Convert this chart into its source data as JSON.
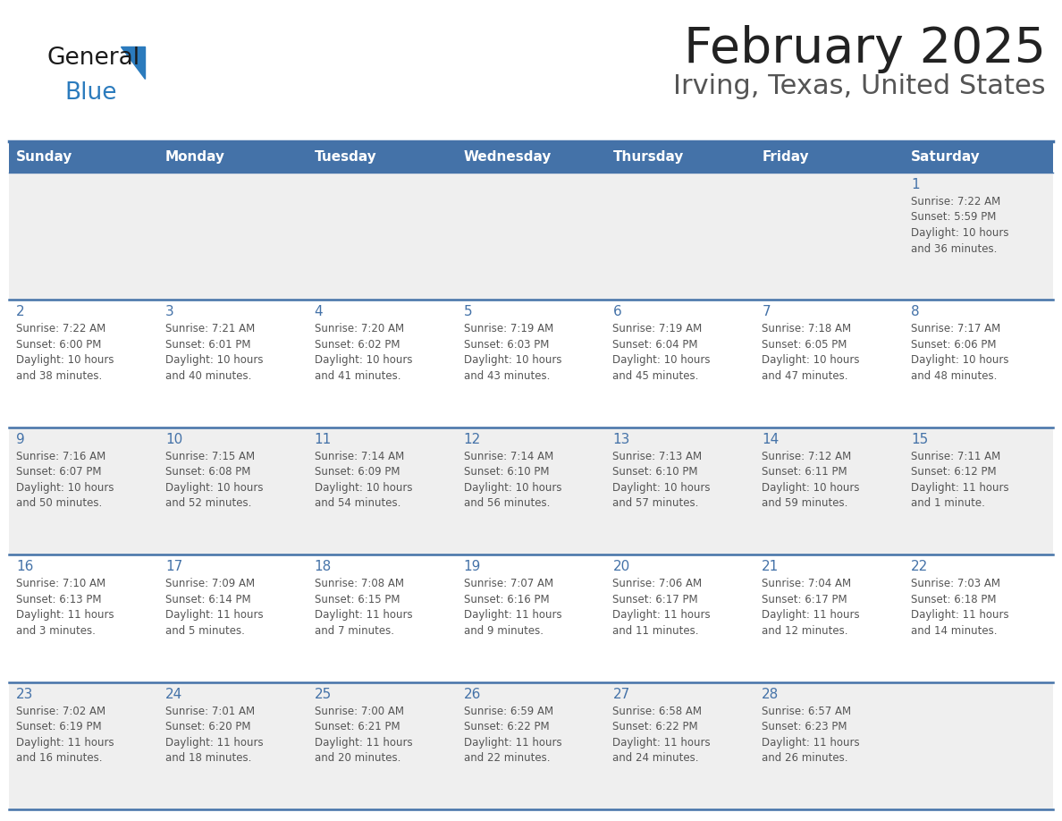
{
  "title": "February 2025",
  "subtitle": "Irving, Texas, United States",
  "days_of_week": [
    "Sunday",
    "Monday",
    "Tuesday",
    "Wednesday",
    "Thursday",
    "Friday",
    "Saturday"
  ],
  "header_bg": "#4472A8",
  "header_text": "#FFFFFF",
  "odd_row_bg": "#EFEFEF",
  "even_row_bg": "#FFFFFF",
  "border_color": "#4472A8",
  "day_number_color": "#4472A8",
  "cell_text_color": "#555555",
  "title_color": "#222222",
  "subtitle_color": "#555555",
  "logo_general_color": "#1a1a1a",
  "logo_blue_color": "#2B7BBD",
  "fig_width": 11.88,
  "fig_height": 9.18,
  "calendar_data": [
    {
      "day": 1,
      "col": 6,
      "row": 0,
      "sunrise": "7:22 AM",
      "sunset": "5:59 PM",
      "daylight_line1": "Daylight: 10 hours",
      "daylight_line2": "and 36 minutes."
    },
    {
      "day": 2,
      "col": 0,
      "row": 1,
      "sunrise": "7:22 AM",
      "sunset": "6:00 PM",
      "daylight_line1": "Daylight: 10 hours",
      "daylight_line2": "and 38 minutes."
    },
    {
      "day": 3,
      "col": 1,
      "row": 1,
      "sunrise": "7:21 AM",
      "sunset": "6:01 PM",
      "daylight_line1": "Daylight: 10 hours",
      "daylight_line2": "and 40 minutes."
    },
    {
      "day": 4,
      "col": 2,
      "row": 1,
      "sunrise": "7:20 AM",
      "sunset": "6:02 PM",
      "daylight_line1": "Daylight: 10 hours",
      "daylight_line2": "and 41 minutes."
    },
    {
      "day": 5,
      "col": 3,
      "row": 1,
      "sunrise": "7:19 AM",
      "sunset": "6:03 PM",
      "daylight_line1": "Daylight: 10 hours",
      "daylight_line2": "and 43 minutes."
    },
    {
      "day": 6,
      "col": 4,
      "row": 1,
      "sunrise": "7:19 AM",
      "sunset": "6:04 PM",
      "daylight_line1": "Daylight: 10 hours",
      "daylight_line2": "and 45 minutes."
    },
    {
      "day": 7,
      "col": 5,
      "row": 1,
      "sunrise": "7:18 AM",
      "sunset": "6:05 PM",
      "daylight_line1": "Daylight: 10 hours",
      "daylight_line2": "and 47 minutes."
    },
    {
      "day": 8,
      "col": 6,
      "row": 1,
      "sunrise": "7:17 AM",
      "sunset": "6:06 PM",
      "daylight_line1": "Daylight: 10 hours",
      "daylight_line2": "and 48 minutes."
    },
    {
      "day": 9,
      "col": 0,
      "row": 2,
      "sunrise": "7:16 AM",
      "sunset": "6:07 PM",
      "daylight_line1": "Daylight: 10 hours",
      "daylight_line2": "and 50 minutes."
    },
    {
      "day": 10,
      "col": 1,
      "row": 2,
      "sunrise": "7:15 AM",
      "sunset": "6:08 PM",
      "daylight_line1": "Daylight: 10 hours",
      "daylight_line2": "and 52 minutes."
    },
    {
      "day": 11,
      "col": 2,
      "row": 2,
      "sunrise": "7:14 AM",
      "sunset": "6:09 PM",
      "daylight_line1": "Daylight: 10 hours",
      "daylight_line2": "and 54 minutes."
    },
    {
      "day": 12,
      "col": 3,
      "row": 2,
      "sunrise": "7:14 AM",
      "sunset": "6:10 PM",
      "daylight_line1": "Daylight: 10 hours",
      "daylight_line2": "and 56 minutes."
    },
    {
      "day": 13,
      "col": 4,
      "row": 2,
      "sunrise": "7:13 AM",
      "sunset": "6:10 PM",
      "daylight_line1": "Daylight: 10 hours",
      "daylight_line2": "and 57 minutes."
    },
    {
      "day": 14,
      "col": 5,
      "row": 2,
      "sunrise": "7:12 AM",
      "sunset": "6:11 PM",
      "daylight_line1": "Daylight: 10 hours",
      "daylight_line2": "and 59 minutes."
    },
    {
      "day": 15,
      "col": 6,
      "row": 2,
      "sunrise": "7:11 AM",
      "sunset": "6:12 PM",
      "daylight_line1": "Daylight: 11 hours",
      "daylight_line2": "and 1 minute."
    },
    {
      "day": 16,
      "col": 0,
      "row": 3,
      "sunrise": "7:10 AM",
      "sunset": "6:13 PM",
      "daylight_line1": "Daylight: 11 hours",
      "daylight_line2": "and 3 minutes."
    },
    {
      "day": 17,
      "col": 1,
      "row": 3,
      "sunrise": "7:09 AM",
      "sunset": "6:14 PM",
      "daylight_line1": "Daylight: 11 hours",
      "daylight_line2": "and 5 minutes."
    },
    {
      "day": 18,
      "col": 2,
      "row": 3,
      "sunrise": "7:08 AM",
      "sunset": "6:15 PM",
      "daylight_line1": "Daylight: 11 hours",
      "daylight_line2": "and 7 minutes."
    },
    {
      "day": 19,
      "col": 3,
      "row": 3,
      "sunrise": "7:07 AM",
      "sunset": "6:16 PM",
      "daylight_line1": "Daylight: 11 hours",
      "daylight_line2": "and 9 minutes."
    },
    {
      "day": 20,
      "col": 4,
      "row": 3,
      "sunrise": "7:06 AM",
      "sunset": "6:17 PM",
      "daylight_line1": "Daylight: 11 hours",
      "daylight_line2": "and 11 minutes."
    },
    {
      "day": 21,
      "col": 5,
      "row": 3,
      "sunrise": "7:04 AM",
      "sunset": "6:17 PM",
      "daylight_line1": "Daylight: 11 hours",
      "daylight_line2": "and 12 minutes."
    },
    {
      "day": 22,
      "col": 6,
      "row": 3,
      "sunrise": "7:03 AM",
      "sunset": "6:18 PM",
      "daylight_line1": "Daylight: 11 hours",
      "daylight_line2": "and 14 minutes."
    },
    {
      "day": 23,
      "col": 0,
      "row": 4,
      "sunrise": "7:02 AM",
      "sunset": "6:19 PM",
      "daylight_line1": "Daylight: 11 hours",
      "daylight_line2": "and 16 minutes."
    },
    {
      "day": 24,
      "col": 1,
      "row": 4,
      "sunrise": "7:01 AM",
      "sunset": "6:20 PM",
      "daylight_line1": "Daylight: 11 hours",
      "daylight_line2": "and 18 minutes."
    },
    {
      "day": 25,
      "col": 2,
      "row": 4,
      "sunrise": "7:00 AM",
      "sunset": "6:21 PM",
      "daylight_line1": "Daylight: 11 hours",
      "daylight_line2": "and 20 minutes."
    },
    {
      "day": 26,
      "col": 3,
      "row": 4,
      "sunrise": "6:59 AM",
      "sunset": "6:22 PM",
      "daylight_line1": "Daylight: 11 hours",
      "daylight_line2": "and 22 minutes."
    },
    {
      "day": 27,
      "col": 4,
      "row": 4,
      "sunrise": "6:58 AM",
      "sunset": "6:22 PM",
      "daylight_line1": "Daylight: 11 hours",
      "daylight_line2": "and 24 minutes."
    },
    {
      "day": 28,
      "col": 5,
      "row": 4,
      "sunrise": "6:57 AM",
      "sunset": "6:23 PM",
      "daylight_line1": "Daylight: 11 hours",
      "daylight_line2": "and 26 minutes."
    }
  ]
}
